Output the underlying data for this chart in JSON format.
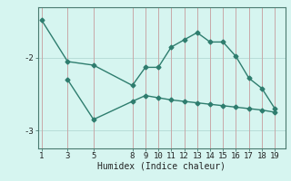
{
  "line1_x": [
    1,
    3,
    5,
    8,
    9,
    10,
    11,
    12,
    13,
    14,
    15,
    16,
    17,
    18,
    19
  ],
  "line1_y": [
    -1.48,
    -2.05,
    -2.1,
    -2.38,
    -2.13,
    -2.13,
    -1.85,
    -1.75,
    -1.65,
    -1.78,
    -1.78,
    -1.98,
    -2.28,
    -2.42,
    -2.7
  ],
  "line2_x": [
    3,
    5,
    8,
    9,
    10,
    11,
    12,
    13,
    14,
    15,
    16,
    17,
    18,
    19
  ],
  "line2_y": [
    -2.3,
    -2.85,
    -2.6,
    -2.52,
    -2.55,
    -2.58,
    -2.6,
    -2.62,
    -2.64,
    -2.66,
    -2.68,
    -2.7,
    -2.72,
    -2.75
  ],
  "line_color": "#2e7d6e",
  "bg_color": "#d6f5f0",
  "hgrid_color": "#b8ddd8",
  "vgrid_color": "#c8a8a8",
  "xlabel": "Humidex (Indice chaleur)",
  "xticks": [
    1,
    3,
    5,
    8,
    9,
    10,
    11,
    12,
    13,
    14,
    15,
    16,
    17,
    18,
    19
  ],
  "yticks": [
    -3,
    -2
  ],
  "ylim": [
    -3.25,
    -1.3
  ],
  "xlim": [
    0.7,
    19.8
  ],
  "marker": "D",
  "markersize": 2.5,
  "linewidth": 1.0,
  "xlabel_fontsize": 7,
  "tick_fontsize": 6.5
}
